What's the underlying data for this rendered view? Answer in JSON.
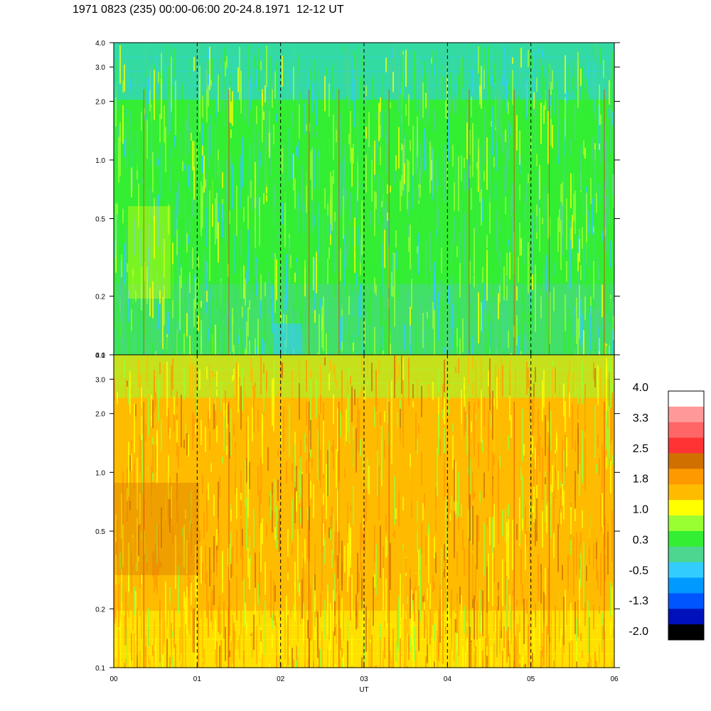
{
  "header": {
    "title": "1971 0823 (235) 00:00-06:00 20-24.8.1971  12-12 UT"
  },
  "chart_data": [
    {
      "type": "heatmap",
      "panel": "top",
      "title": "",
      "xlabel": "",
      "ylabel": "",
      "y_scale": "log",
      "ylim": [
        0.1,
        4.0
      ],
      "y_ticks": [
        "0.1",
        "0.2",
        "0.5",
        "1.0",
        "2.0",
        "3.0",
        "4.0"
      ],
      "x_ticks": [
        "00",
        "01",
        "02",
        "03",
        "04",
        "05",
        "06"
      ],
      "xlim": [
        "00",
        "06"
      ],
      "grid": "dashed vertical lines at each hour",
      "dominant_colors": [
        "#33ee33",
        "#4dd68f",
        "#99ff33",
        "#33ccff",
        "#ffff00"
      ]
    },
    {
      "type": "heatmap",
      "panel": "bottom",
      "title": "",
      "xlabel": "UT",
      "ylabel": "",
      "y_scale": "log",
      "ylim": [
        0.1,
        4.0
      ],
      "y_ticks": [
        "0.1",
        "0.2",
        "0.5",
        "1.0",
        "2.0",
        "3.0",
        "4.0"
      ],
      "x_ticks": [
        "00",
        "01",
        "02",
        "03",
        "04",
        "05",
        "06"
      ],
      "xlim": [
        "00",
        "06"
      ],
      "grid": "dashed vertical lines at each hour",
      "dominant_colors": [
        "#ffbb00",
        "#ff9900",
        "#ffff00",
        "#99ff33",
        "#d07000"
      ]
    }
  ],
  "colorbar": {
    "labels": [
      "4.0",
      "3.3",
      "2.5",
      "1.8",
      "1.0",
      "0.3",
      "-0.5",
      "-1.3",
      "-2.0"
    ],
    "colors": [
      "#ffffff",
      "#ff9999",
      "#ff6666",
      "#ff3333",
      "#d07000",
      "#ff9900",
      "#ffbb00",
      "#ffff00",
      "#99ff33",
      "#33ee33",
      "#4dd68f",
      "#33ccff",
      "#0099ff",
      "#0055ff",
      "#0011bb",
      "#000000"
    ]
  }
}
